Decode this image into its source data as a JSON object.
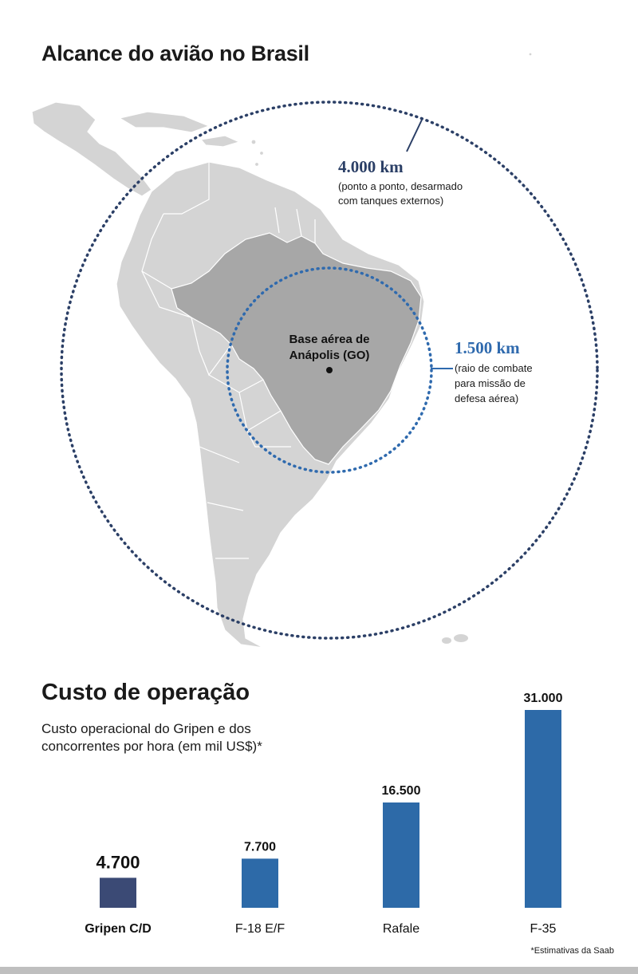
{
  "map": {
    "title": "Alcance do avião no Brasil",
    "base": {
      "name": "Base aérea de",
      "name_line2": "Anápolis (GO)"
    },
    "ranges": [
      {
        "value": "4.000 km",
        "note_line1": "(ponto a ponto, desarmado",
        "note_line2": "com tanques externos)",
        "note_line3": ""
      },
      {
        "value": "1.500 km",
        "note_line1": "(raio de combate",
        "note_line2": "para missão de",
        "note_line3": "defesa aérea)"
      }
    ]
  },
  "chart": {
    "title": "Custo de operação",
    "subtitle": "Custo operacional do Gripen e dos concorrentes por hora (em mil US$)*",
    "footnote": "*Estimativas da Saab"
  },
  "chart_data": {
    "type": "bar",
    "categories": [
      "Gripen C/D",
      "F-18 E/F",
      "Rafale",
      "F-35"
    ],
    "values": [
      4700,
      7700,
      16500,
      31000
    ],
    "value_labels": [
      "4.700",
      "7.700",
      "16.500",
      "31.000"
    ],
    "colors": [
      "#3b4a75",
      "#2d6aa8",
      "#2d6aa8",
      "#2d6aa8"
    ],
    "highlight": "Gripen C/D",
    "ylim": [
      0,
      31000
    ],
    "grid": false,
    "legend": "none"
  },
  "colors": {
    "outer_circle": "#2b3f66",
    "inner_circle": "#2f6aae",
    "land": "#d4d4d4",
    "brazil": "#a7a7a7",
    "border": "#ffffff"
  }
}
